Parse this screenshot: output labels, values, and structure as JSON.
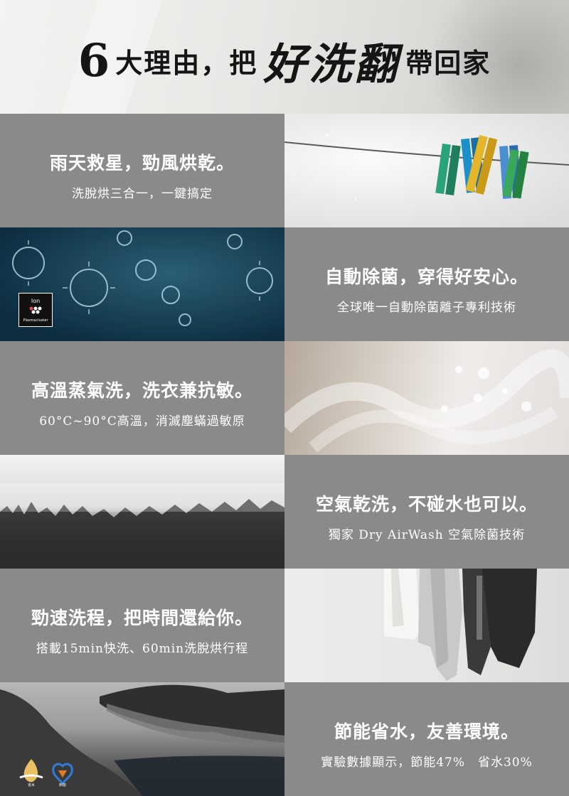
{
  "header": {
    "num": "6",
    "pre": "大理由，把",
    "brand": "好洗翻",
    "post": "帶回家"
  },
  "reasons": [
    {
      "headline": "雨天救星，勁風烘乾。",
      "sub": "洗脫烘三合一，一鍵搞定"
    },
    {
      "headline": "自動除菌，穿得好安心。",
      "sub": "全球唯一自動除菌離子專利技術"
    },
    {
      "headline": "高溫蒸氣洗，洗衣兼抗敏。",
      "sub": "60°C~90°C高溫，消滅塵蟎過敏原"
    },
    {
      "headline": "空氣乾洗，不碰水也可以。",
      "sub": "獨家 Dry AirWash 空氣除菌技術"
    },
    {
      "headline": "勁速洗程，把時間還給你。",
      "sub": "搭載15min快洗、60min洗脫烘行程"
    },
    {
      "headline": "節能省水，友善環境。",
      "sub": "實驗數據顯示，節能47%　省水30%"
    }
  ],
  "badge": {
    "brand_small": "Ion",
    "label": "Plasmacluster"
  },
  "colors": {
    "panel_gray": "#8a8a8b",
    "title_black": "#151515",
    "text_white": "#ffffff"
  }
}
